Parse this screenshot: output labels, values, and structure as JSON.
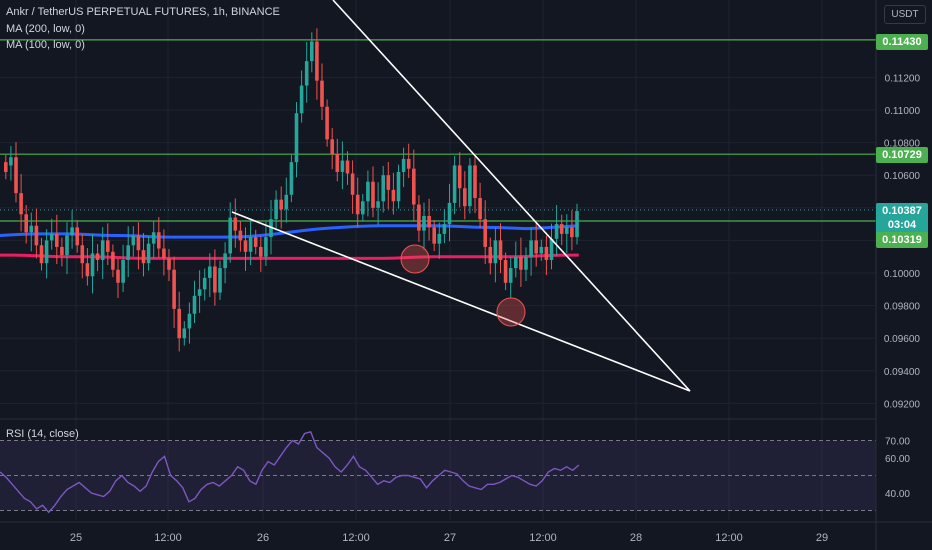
{
  "header": {
    "title": "Ankr / TetherUS PERPETUAL FUTURES, 1h, BINANCE",
    "ma200_label": "MA (200, low, 0)",
    "ma100_label": "MA (100, low, 0)",
    "rsi_label": "RSI (14, close)",
    "currency_label": "USDT"
  },
  "price_tags": {
    "resistance_1": "0.11430",
    "resistance_2": "0.10729",
    "current_price": "0.10387",
    "countdown": "03:04",
    "support": "0.10319"
  },
  "colors": {
    "background": "#131722",
    "up": "#26a69a",
    "down": "#ef5350",
    "ma100": "#2962ff",
    "ma200": "#e91e63",
    "horizontal_lines": "#4caf50",
    "trendlines": "#ffffff",
    "rsi_line": "#7e57c2"
  },
  "chart_data": [
    {
      "type": "candlestick",
      "title": "Ankr / TetherUS PERPETUAL FUTURES, 1h, BINANCE",
      "x_tick_labels": [
        "25",
        "12:00",
        "26",
        "12:00",
        "27",
        "12:00",
        "28",
        "12:00",
        "29"
      ],
      "y_tick_labels": [
        "0.09200",
        "0.09400",
        "0.09600",
        "0.09800",
        "0.10000",
        "0.10200",
        "0.10400",
        "0.10600",
        "0.10800",
        "0.11000",
        "0.11200",
        "0.11430"
      ],
      "ylim": [
        0.091,
        0.1175
      ],
      "grid": true,
      "series": [
        {
          "name": "MA (100, low, 0)",
          "values": [
            0.1023,
            0.1024,
            0.1024,
            0.1024,
            0.1023,
            0.1023,
            0.1022,
            0.1022,
            0.1022,
            0.1022,
            0.1023,
            0.1025,
            0.1027,
            0.1028,
            0.1029,
            0.1029,
            0.1029,
            0.1029,
            0.1028,
            0.1028,
            0.1027,
            0.1028,
            0.1029
          ]
        },
        {
          "name": "MA (200, low, 0)",
          "values": [
            0.1011,
            0.1011,
            0.101,
            0.101,
            0.101,
            0.1009,
            0.1009,
            0.1009,
            0.1009,
            0.1009,
            0.1009,
            0.1009,
            0.1009,
            0.1009,
            0.1009,
            0.1009,
            0.101,
            0.101,
            0.101,
            0.101,
            0.101,
            0.1011,
            0.1011
          ]
        }
      ],
      "horizontal_lines": [
        0.1143,
        0.10729,
        0.10319
      ],
      "current_price": 0.10387
    },
    {
      "type": "line",
      "title": "RSI (14, close)",
      "y_tick_labels": [
        "40.00",
        "60.00",
        "70.00"
      ],
      "ylim": [
        27,
        72
      ],
      "bands": [
        30,
        50,
        70
      ],
      "values": [
        52,
        49,
        45,
        41,
        37,
        35,
        31,
        33,
        29,
        33,
        38,
        42,
        44,
        46,
        43,
        40,
        39,
        38,
        41,
        47,
        50,
        46,
        44,
        41,
        44,
        52,
        58,
        61,
        50,
        47,
        43,
        35,
        37,
        42,
        45,
        46,
        44,
        47,
        50,
        55,
        53,
        47,
        45,
        53,
        58,
        56,
        61,
        66,
        70,
        68,
        74,
        75,
        66,
        63,
        60,
        55,
        52,
        56,
        61,
        55,
        53,
        49,
        45,
        47,
        46,
        49,
        50,
        50,
        49,
        48,
        43,
        47,
        50,
        53,
        52,
        51,
        47,
        44,
        43,
        42,
        45,
        45,
        46,
        48,
        50,
        49,
        47,
        45,
        44,
        47,
        52,
        54,
        53,
        55,
        53,
        56
      ]
    }
  ]
}
